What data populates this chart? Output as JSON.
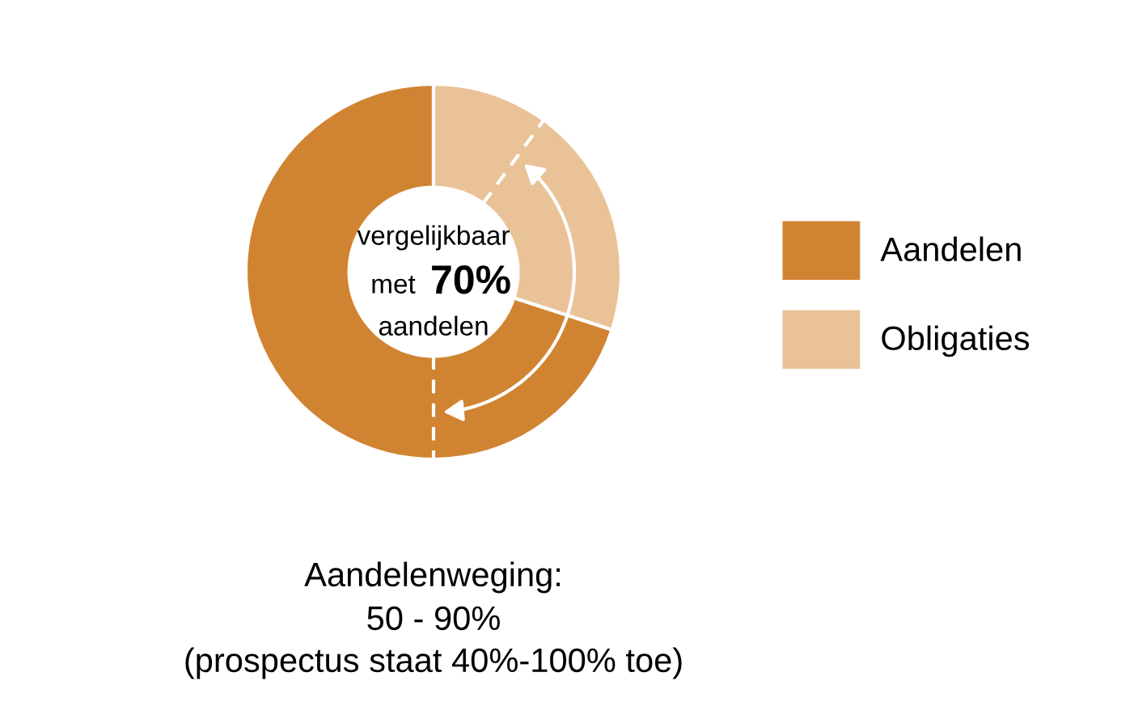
{
  "chart_data": {
    "type": "donut",
    "categories": [
      "Aandelen",
      "Obligaties"
    ],
    "values": [
      70,
      30
    ],
    "colors": [
      "#d08432",
      "#e9c397"
    ],
    "legend": "right",
    "annotations": [
      "vergelijkbaar",
      "met",
      "70%",
      "aandelen",
      "Aandelenweging:",
      "50 - 90%",
      "(prospectus staat 40%-100% toe)"
    ]
  }
}
